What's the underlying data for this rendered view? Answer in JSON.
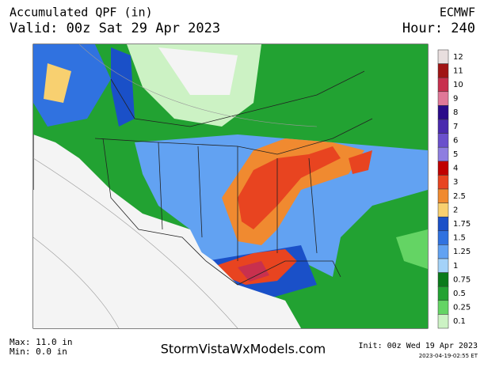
{
  "header": {
    "title": "Accumulated QPF (in)",
    "model": "ECMWF",
    "valid": "Valid: 00z Sat 29 Apr 2023",
    "hour": "Hour: 240"
  },
  "legend": {
    "levels": [
      {
        "label": "12",
        "color": "#e8dede"
      },
      {
        "label": "11",
        "color": "#a01414"
      },
      {
        "label": "10",
        "color": "#c8304e"
      },
      {
        "label": "9",
        "color": "#e07898"
      },
      {
        "label": "8",
        "color": "#2a0a8a"
      },
      {
        "label": "7",
        "color": "#4a2aae"
      },
      {
        "label": "6",
        "color": "#6a50cc"
      },
      {
        "label": "5",
        "color": "#8e7ee0"
      },
      {
        "label": "4",
        "color": "#c00000"
      },
      {
        "label": "3",
        "color": "#e84420"
      },
      {
        "label": "2.5",
        "color": "#f08a30"
      },
      {
        "label": "2",
        "color": "#f8d070"
      },
      {
        "label": "1.75",
        "color": "#1a50c8"
      },
      {
        "label": "1.5",
        "color": "#3072e0"
      },
      {
        "label": "1.25",
        "color": "#62a2f2"
      },
      {
        "label": "1",
        "color": "#a4d2f8"
      },
      {
        "label": "0.75",
        "color": "#0a7a1a"
      },
      {
        "label": "0.5",
        "color": "#22a232"
      },
      {
        "label": "0.25",
        "color": "#64d464"
      },
      {
        "label": "0.1",
        "color": "#ccf2c4"
      }
    ]
  },
  "footer": {
    "max": "Max: 11.0 in",
    "min": "Min: 0.0 in",
    "site": "StormVistaWxModels.com",
    "init": "Init: 00z Wed 19 Apr 2023",
    "stamp": "2023-04-19-02:55 ET"
  }
}
